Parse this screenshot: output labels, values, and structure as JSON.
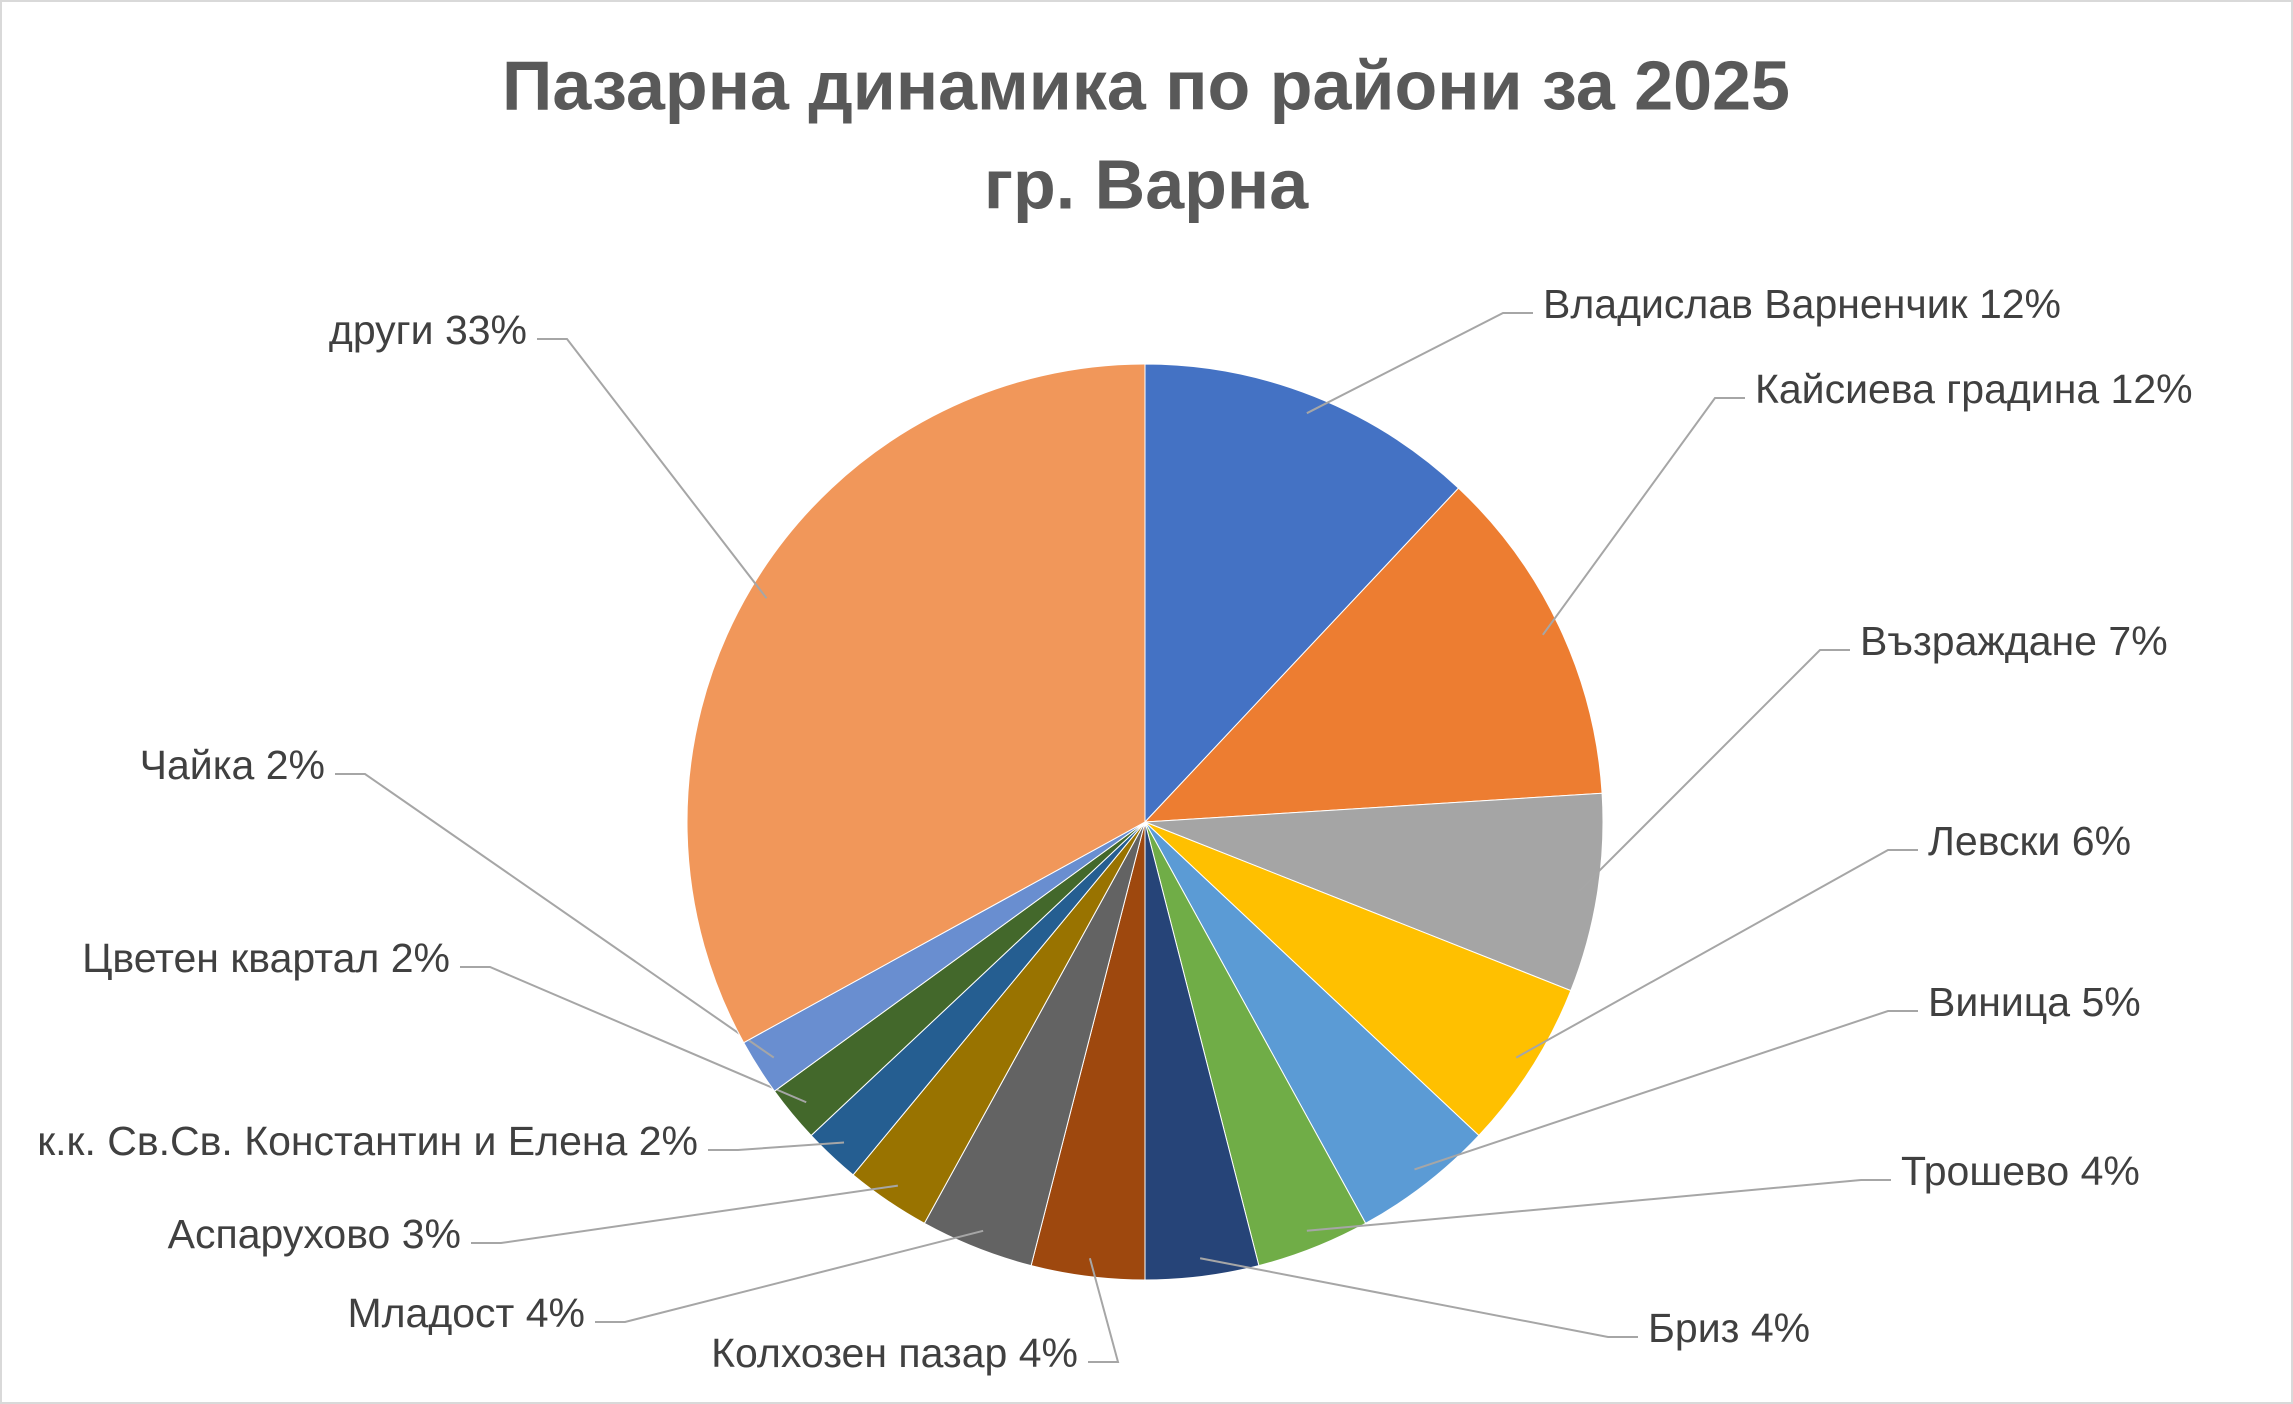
{
  "chart_data": {
    "type": "pie",
    "title": [
      "Пазарна динамика по райони за 2025",
      "гр. Варна"
    ],
    "categories": [
      "Владислав Варненчик",
      "Кайсиева градина",
      "Възраждане",
      "Левски",
      "Виница",
      "Трошево",
      "Бриз",
      "Колхозен пазар",
      "Младост",
      "Аспарухово",
      "к.к. Св.Св. Константин и Елена",
      "Цветен квартал",
      "Чайка",
      "други"
    ],
    "values": [
      12,
      12,
      7,
      6,
      5,
      4,
      4,
      4,
      4,
      3,
      2,
      2,
      2,
      33
    ],
    "value_labels": [
      "12%",
      "12%",
      "7%",
      "6%",
      "5%",
      "4%",
      "4%",
      "4%",
      "4%",
      "3%",
      "2%",
      "2%",
      "2%",
      "33%"
    ],
    "colors": [
      "#4472c4",
      "#ed7d31",
      "#a5a5a5",
      "#ffc000",
      "#5b9bd5",
      "#70ad47",
      "#264478",
      "#9e480e",
      "#636363",
      "#997300",
      "#255e91",
      "#43682b",
      "#698ed0",
      "#f1975a"
    ]
  }
}
